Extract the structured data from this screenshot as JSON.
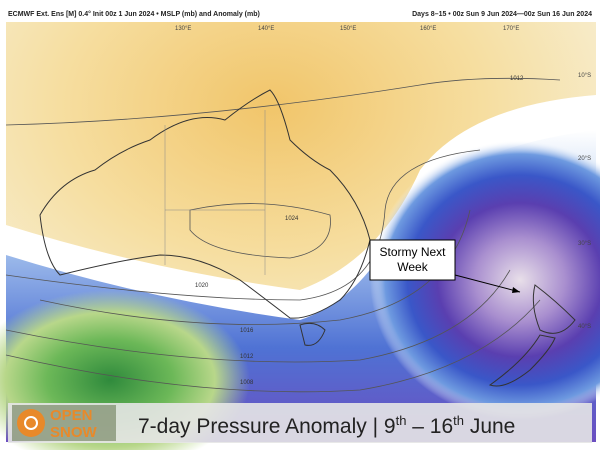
{
  "header": {
    "left": "ECMWF Ext. Ens [M] 0.4° Init 00z 1 Jun 2024 • MSLP (mb) and Anomaly (mb)",
    "right": "Days 8–15 • 00z Sun 9 Jun 2024—00z Sun 16 Jun 2024"
  },
  "map": {
    "longitudes": [
      "130°E",
      "140°E",
      "150°E",
      "160°E",
      "170°E"
    ],
    "latitudes": [
      "10°S",
      "20°S",
      "30°S",
      "40°S"
    ],
    "contours": [
      "1012",
      "1024",
      "1020",
      "1016",
      "1012",
      "1008"
    ],
    "annotation": "Stormy Next Week"
  },
  "logo": {
    "line1": "OPEN",
    "line2": "SNOW"
  },
  "caption": {
    "parts": [
      "7-day Pressure Anomaly | 9",
      "th",
      " – 16",
      "th",
      " June"
    ]
  }
}
